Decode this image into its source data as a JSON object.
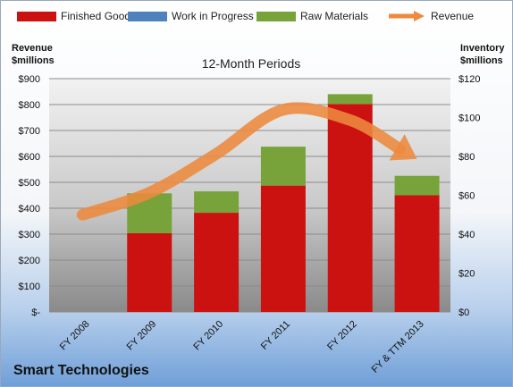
{
  "company": "Smart Technologies",
  "chart_data": {
    "type": "bar",
    "subtitle": "12-Month Periods",
    "categories": [
      "FY 2008",
      "FY 2009",
      "FY 2010",
      "FY 2011",
      "FY 2012",
      "FY & TTM 2013"
    ],
    "left_axis": {
      "label_line1": "Revenue",
      "label_line2": "$millions",
      "ylim": [
        0,
        900
      ],
      "ticks": [
        0,
        100,
        200,
        300,
        400,
        500,
        600,
        700,
        800,
        900
      ],
      "tick_labels": [
        "$-",
        "$100",
        "$200",
        "$300",
        "$400",
        "$500",
        "$600",
        "$700",
        "$800",
        "$900"
      ]
    },
    "right_axis": {
      "label_line1": "Inventory",
      "label_line2": "$millions",
      "ylim": [
        0,
        120
      ],
      "ticks": [
        0,
        20,
        40,
        60,
        80,
        100,
        120
      ],
      "tick_labels": [
        "$0",
        "$20",
        "$40",
        "$60",
        "$80",
        "$100",
        "$120"
      ]
    },
    "series": [
      {
        "name": "Finished Goods",
        "kind": "bar",
        "axis": "right",
        "color": "#cc1111",
        "values": [
          0,
          40.5,
          51,
          65,
          107,
          60
        ]
      },
      {
        "name": "Work in Progress",
        "kind": "bar",
        "axis": "right",
        "color": "#4f81bd",
        "values": [
          0,
          0,
          0,
          0,
          0,
          0
        ]
      },
      {
        "name": "Raw Materials",
        "kind": "bar",
        "axis": "right",
        "color": "#77a33a",
        "values": [
          0,
          20.5,
          11,
          20,
          5,
          10
        ]
      },
      {
        "name": "Revenue",
        "kind": "line",
        "axis": "left",
        "color": "#ed8a3e",
        "values": [
          375,
          460,
          610,
          780,
          740,
          590
        ]
      }
    ],
    "stacked": true,
    "grid": true,
    "legend": "top"
  }
}
